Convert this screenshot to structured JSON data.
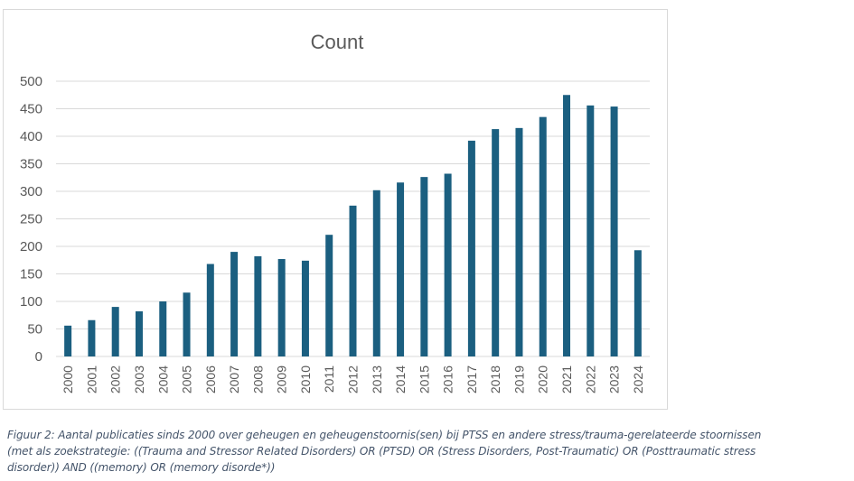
{
  "chart_data": {
    "type": "bar",
    "title": "Count",
    "categories": [
      "2000",
      "2001",
      "2002",
      "2003",
      "2004",
      "2005",
      "2006",
      "2007",
      "2008",
      "2009",
      "2010",
      "2011",
      "2012",
      "2013",
      "2014",
      "2015",
      "2016",
      "2017",
      "2018",
      "2019",
      "2020",
      "2021",
      "2022",
      "2023",
      "2024"
    ],
    "values": [
      56,
      66,
      90,
      82,
      100,
      116,
      168,
      190,
      182,
      177,
      174,
      221,
      274,
      302,
      316,
      326,
      332,
      392,
      413,
      415,
      435,
      475,
      456,
      454,
      193
    ],
    "ylim": [
      0,
      500
    ],
    "yticks": [
      0,
      50,
      100,
      150,
      200,
      250,
      300,
      350,
      400,
      450,
      500
    ],
    "grid": true,
    "legend": "none",
    "bar_color": "#1b5f80",
    "grid_color": "#d9d9d9",
    "text_color": "#595959"
  },
  "caption": {
    "line1": "Figuur 2: Aantal publicaties sinds 2000  over geheugen en geheugenstoornis(sen) bij PTSS en andere stress/trauma-gerelateerde stoornissen",
    "line2": "(met als zoekstrategie: ((Trauma and Stressor Related Disorders) OR (PTSD) OR (Stress Disorders, Post-Traumatic) OR (Posttraumatic stress",
    "line3": "disorder))  AND ((memory) OR (memory disorde*))"
  }
}
